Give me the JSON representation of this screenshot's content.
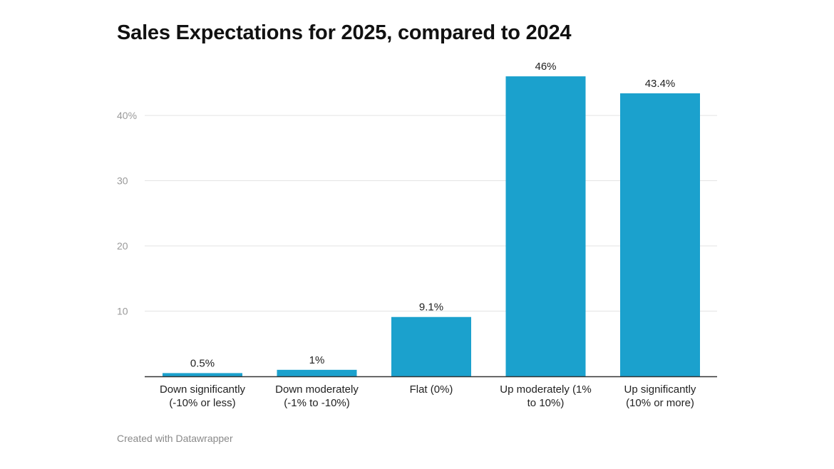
{
  "chart_data": {
    "type": "bar",
    "title": "Sales Expectations for 2025, compared to 2024",
    "xlabel": "",
    "ylabel": "",
    "ylim": [
      0,
      50
    ],
    "yticks": [
      {
        "value": 10,
        "label": "10"
      },
      {
        "value": 20,
        "label": "20"
      },
      {
        "value": 30,
        "label": "30"
      },
      {
        "value": 40,
        "label": "40%"
      }
    ],
    "grid": true,
    "bar_color": "#1ba1cd",
    "categories": [
      [
        "Down significantly",
        "(-10% or less)"
      ],
      [
        "Down moderately",
        "(-1% to -10%)"
      ],
      [
        "Flat (0%)"
      ],
      [
        "Up moderately (1%",
        "to 10%)"
      ],
      [
        "Up significantly",
        "(10% or more)"
      ]
    ],
    "values": [
      0.5,
      1,
      9.1,
      46,
      43.4
    ],
    "data_labels": [
      "0.5%",
      "1%",
      "9.1%",
      "46%",
      "43.4%"
    ]
  },
  "footer": {
    "credit": "Created with Datawrapper"
  }
}
